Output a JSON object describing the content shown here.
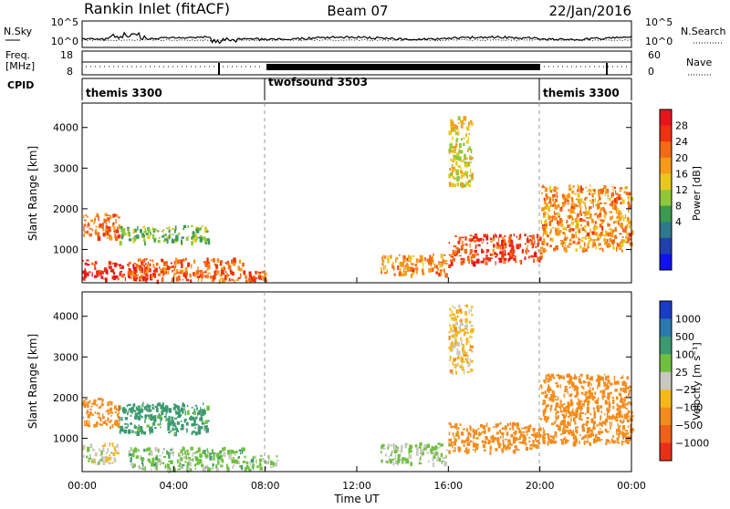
{
  "header": {
    "station": "Rankin Inlet (fitACF)",
    "beam": "Beam 07",
    "date": "22/Jan/2016"
  },
  "noise_panel": {
    "left_label": "N.Sky",
    "right_label": "N.Search",
    "y_ticks_left": [
      "10^5",
      "10^0"
    ],
    "y_ticks_right": [
      "10^5",
      "10^0"
    ]
  },
  "freq_panel": {
    "left_label_line1": "Freq.",
    "left_label_line2": "[MHz]",
    "left_ticks": [
      "18",
      "8"
    ],
    "right_ticks": [
      "60",
      "0"
    ],
    "right_label": "Nave"
  },
  "cpid": {
    "label": "CPID",
    "segments": [
      {
        "name": "themis 3300",
        "start_hour": 0
      },
      {
        "name": "twofsound 3503",
        "start_hour": 8
      },
      {
        "name": "themis 3300",
        "start_hour": 20
      }
    ]
  },
  "x_axis": {
    "title": "Time UT",
    "ticks": [
      "00:00",
      "04:00",
      "08:00",
      "12:00",
      "16:00",
      "20:00",
      "00:00"
    ],
    "range_hours": [
      0,
      24
    ]
  },
  "y_axis": {
    "title": "Slant Range [km]",
    "ticks": [
      "1000",
      "2000",
      "3000",
      "4000"
    ],
    "range_km": [
      180,
      4600
    ]
  },
  "power_colorbar": {
    "title": "Power [dB]",
    "labels": [
      "28",
      "24",
      "20",
      "16",
      "12",
      "8",
      "4"
    ],
    "colors_top_to_bottom": [
      "#e8141c",
      "#f03010",
      "#f46a14",
      "#f89a18",
      "#e8c81c",
      "#90c83a",
      "#3c9a50",
      "#2e7a8a",
      "#2040b0",
      "#1010f0"
    ]
  },
  "velocity_colorbar": {
    "title": "Velocity [m s⁻¹]",
    "labels": [
      "1000",
      "500",
      "100",
      "25",
      "−25",
      "−100",
      "−500",
      "−1000"
    ],
    "colors_top_to_bottom": [
      "#1a3cc8",
      "#2a7ab0",
      "#3c9a70",
      "#70c040",
      "#c8c8c0",
      "#f4b81c",
      "#f48c1c",
      "#f06018",
      "#e83018"
    ]
  },
  "chart_data": [
    {
      "type": "heatmap",
      "title": "Power [dB]",
      "xlabel": "Time UT",
      "ylabel": "Slant Range [km]",
      "x_range_hours": [
        0,
        24
      ],
      "y_range_km": [
        180,
        4600
      ],
      "regions": [
        {
          "t": [
            0,
            3.2
          ],
          "r": [
            300,
            750
          ],
          "value": 28
        },
        {
          "t": [
            0,
            1.6
          ],
          "r": [
            1300,
            1900
          ],
          "value": 24
        },
        {
          "t": [
            1.6,
            5.5
          ],
          "r": [
            1200,
            1600
          ],
          "value": 14
        },
        {
          "t": [
            2.0,
            7.0
          ],
          "r": [
            250,
            800
          ],
          "value": 24
        },
        {
          "t": [
            7.0,
            8.0
          ],
          "r": [
            250,
            500
          ],
          "value": 26
        },
        {
          "t": [
            13.0,
            16.0
          ],
          "r": [
            400,
            900
          ],
          "value": 22
        },
        {
          "t": [
            16.0,
            20.0
          ],
          "r": [
            700,
            1400
          ],
          "value": 26
        },
        {
          "t": [
            20.0,
            24.0
          ],
          "r": [
            1000,
            2600
          ],
          "value": 22
        },
        {
          "t": [
            16.0,
            17.0
          ],
          "r": [
            2600,
            4300
          ],
          "value": 18
        }
      ]
    },
    {
      "type": "heatmap",
      "title": "Velocity [m s⁻¹]",
      "xlabel": "Time UT",
      "ylabel": "Slant Range [km]",
      "x_range_hours": [
        0,
        24
      ],
      "y_range_km": [
        180,
        4600
      ],
      "regions": [
        {
          "t": [
            0,
            1.6
          ],
          "r": [
            1300,
            2000
          ],
          "value": -200
        },
        {
          "t": [
            1.6,
            5.5
          ],
          "r": [
            1150,
            1900
          ],
          "value": 150
        },
        {
          "t": [
            0,
            1.5
          ],
          "r": [
            400,
            900
          ],
          "value": 0
        },
        {
          "t": [
            2.0,
            7.0
          ],
          "r": [
            250,
            800
          ],
          "value": 60
        },
        {
          "t": [
            7.0,
            8.5
          ],
          "r": [
            250,
            600
          ],
          "value": 60
        },
        {
          "t": [
            13.0,
            16.0
          ],
          "r": [
            400,
            900
          ],
          "value": 40
        },
        {
          "t": [
            16.0,
            20.0
          ],
          "r": [
            700,
            1400
          ],
          "value": -250
        },
        {
          "t": [
            20.0,
            24.0
          ],
          "r": [
            900,
            2600
          ],
          "value": -300
        },
        {
          "t": [
            16.0,
            17.0
          ],
          "r": [
            2600,
            4300
          ],
          "value": -60
        }
      ]
    }
  ]
}
